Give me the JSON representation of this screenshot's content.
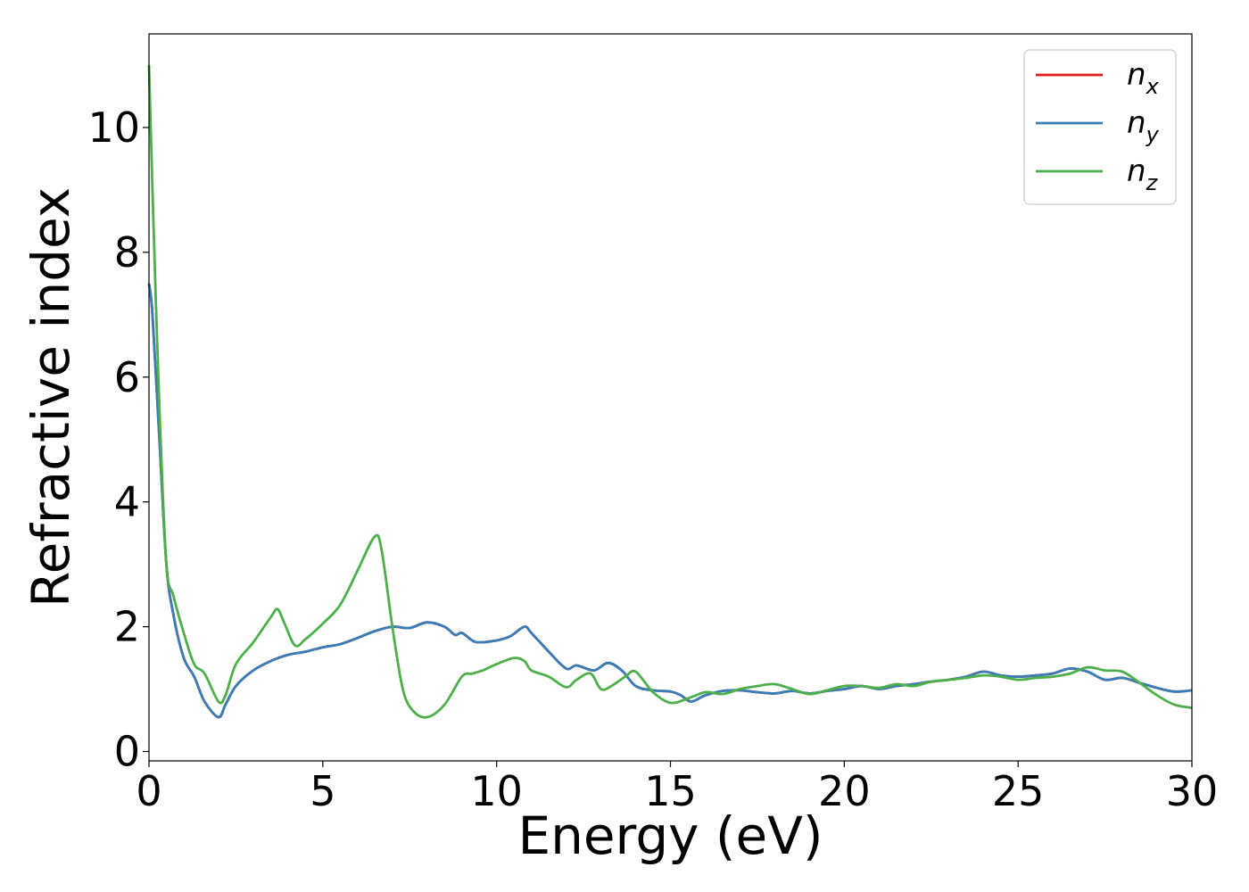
{
  "chart_data": {
    "type": "line",
    "title": "",
    "xlabel": "Energy (eV)",
    "ylabel": "Refractive index",
    "xlim": [
      0,
      30
    ],
    "ylim": [
      -0.15,
      11.5
    ],
    "xticks": [
      0,
      5,
      10,
      15,
      20,
      25,
      30
    ],
    "yticks": [
      0,
      2,
      4,
      6,
      8,
      10
    ],
    "grid": false,
    "legend_position": "top-right",
    "series": [
      {
        "name": "n",
        "subscript": "x",
        "color": "#e41a1c",
        "x": [
          0,
          0.1,
          0.3,
          0.5,
          0.7,
          1.0,
          1.3,
          1.6,
          2.0,
          2.2,
          2.5,
          3.0,
          3.5,
          4.0,
          4.5,
          5.0,
          5.5,
          6.0,
          6.5,
          7.0,
          7.5,
          8.0,
          8.5,
          8.8,
          9.0,
          9.3,
          9.5,
          10.0,
          10.4,
          10.8,
          11.0,
          11.5,
          12.0,
          12.3,
          12.8,
          13.2,
          13.6,
          14.0,
          14.5,
          15.0,
          15.3,
          15.6,
          16.0,
          16.5,
          17.0,
          17.5,
          18.0,
          18.5,
          19.0,
          19.5,
          20.0,
          20.5,
          21.0,
          21.5,
          22.0,
          22.5,
          23.0,
          23.5,
          24.0,
          24.5,
          25.0,
          25.5,
          26.0,
          26.5,
          27.0,
          27.5,
          28.0,
          28.5,
          29.0,
          29.5,
          30.0
        ],
        "values": [
          7.5,
          7.0,
          5.0,
          3.0,
          2.2,
          1.5,
          1.2,
          0.8,
          0.55,
          0.75,
          1.05,
          1.3,
          1.45,
          1.55,
          1.6,
          1.67,
          1.72,
          1.82,
          1.93,
          2.0,
          1.98,
          2.07,
          2.0,
          1.87,
          1.9,
          1.78,
          1.75,
          1.78,
          1.85,
          2.0,
          1.9,
          1.6,
          1.33,
          1.38,
          1.3,
          1.42,
          1.3,
          1.05,
          0.98,
          0.96,
          0.9,
          0.8,
          0.9,
          0.97,
          0.98,
          0.95,
          0.93,
          0.97,
          0.93,
          0.97,
          1.0,
          1.05,
          1.0,
          1.05,
          1.08,
          1.12,
          1.15,
          1.2,
          1.28,
          1.22,
          1.2,
          1.22,
          1.25,
          1.33,
          1.28,
          1.15,
          1.18,
          1.1,
          1.02,
          0.96,
          0.98
        ]
      },
      {
        "name": "n",
        "subscript": "y",
        "color": "#377eb8",
        "x": [
          0,
          0.1,
          0.3,
          0.5,
          0.7,
          1.0,
          1.3,
          1.6,
          2.0,
          2.2,
          2.5,
          3.0,
          3.5,
          4.0,
          4.5,
          5.0,
          5.5,
          6.0,
          6.5,
          7.0,
          7.5,
          8.0,
          8.5,
          8.8,
          9.0,
          9.3,
          9.5,
          10.0,
          10.4,
          10.8,
          11.0,
          11.5,
          12.0,
          12.3,
          12.8,
          13.2,
          13.6,
          14.0,
          14.5,
          15.0,
          15.3,
          15.6,
          16.0,
          16.5,
          17.0,
          17.5,
          18.0,
          18.5,
          19.0,
          19.5,
          20.0,
          20.5,
          21.0,
          21.5,
          22.0,
          22.5,
          23.0,
          23.5,
          24.0,
          24.5,
          25.0,
          25.5,
          26.0,
          26.5,
          27.0,
          27.5,
          28.0,
          28.5,
          29.0,
          29.5,
          30.0
        ],
        "values": [
          7.5,
          7.0,
          5.0,
          3.0,
          2.2,
          1.5,
          1.2,
          0.8,
          0.55,
          0.75,
          1.05,
          1.3,
          1.45,
          1.55,
          1.6,
          1.67,
          1.72,
          1.82,
          1.93,
          2.0,
          1.98,
          2.07,
          2.0,
          1.87,
          1.9,
          1.78,
          1.75,
          1.78,
          1.85,
          2.0,
          1.9,
          1.6,
          1.33,
          1.38,
          1.3,
          1.42,
          1.3,
          1.05,
          0.98,
          0.96,
          0.9,
          0.8,
          0.9,
          0.97,
          0.98,
          0.95,
          0.93,
          0.97,
          0.93,
          0.97,
          1.0,
          1.05,
          1.0,
          1.05,
          1.08,
          1.12,
          1.15,
          1.2,
          1.28,
          1.22,
          1.2,
          1.22,
          1.25,
          1.33,
          1.28,
          1.15,
          1.18,
          1.1,
          1.02,
          0.96,
          0.98
        ]
      },
      {
        "name": "n",
        "subscript": "z",
        "color": "#4daf4a",
        "x": [
          0,
          0.1,
          0.3,
          0.5,
          0.7,
          1.0,
          1.3,
          1.6,
          2.0,
          2.2,
          2.5,
          3.0,
          3.5,
          3.7,
          3.9,
          4.2,
          4.5,
          5.0,
          5.5,
          6.0,
          6.5,
          6.7,
          7.0,
          7.3,
          7.6,
          8.0,
          8.5,
          9.0,
          9.3,
          9.6,
          10.0,
          10.5,
          10.8,
          11.0,
          11.5,
          12.0,
          12.3,
          12.7,
          13.0,
          13.3,
          13.7,
          14.0,
          14.5,
          15.0,
          15.5,
          16.0,
          16.5,
          17.0,
          17.5,
          18.0,
          18.5,
          19.0,
          19.5,
          20.0,
          20.5,
          21.0,
          21.5,
          22.0,
          22.5,
          23.0,
          23.5,
          24.0,
          24.5,
          25.0,
          25.5,
          26.0,
          26.5,
          27.0,
          27.5,
          28.0,
          28.5,
          29.0,
          29.5,
          30.0
        ],
        "values": [
          11.0,
          9.0,
          5.5,
          3.0,
          2.5,
          1.9,
          1.4,
          1.25,
          0.8,
          0.9,
          1.4,
          1.75,
          2.15,
          2.28,
          2.05,
          1.7,
          1.8,
          2.05,
          2.35,
          2.9,
          3.45,
          3.2,
          2.0,
          1.0,
          0.65,
          0.55,
          0.75,
          1.2,
          1.25,
          1.3,
          1.4,
          1.5,
          1.45,
          1.3,
          1.2,
          1.03,
          1.15,
          1.25,
          1.0,
          1.05,
          1.2,
          1.28,
          0.95,
          0.78,
          0.85,
          0.95,
          0.92,
          1.0,
          1.05,
          1.08,
          1.0,
          0.92,
          0.98,
          1.05,
          1.05,
          1.02,
          1.08,
          1.05,
          1.12,
          1.15,
          1.18,
          1.22,
          1.2,
          1.15,
          1.18,
          1.2,
          1.25,
          1.35,
          1.3,
          1.28,
          1.1,
          0.9,
          0.75,
          0.7
        ]
      }
    ]
  }
}
